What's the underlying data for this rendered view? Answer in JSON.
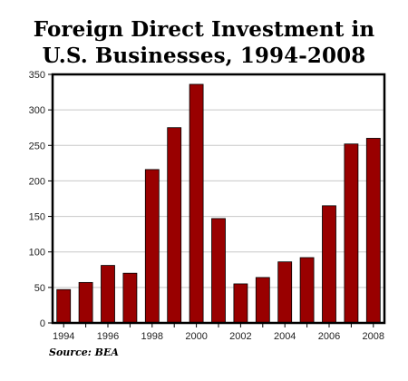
{
  "chart_data": {
    "type": "bar",
    "title_lines": [
      "Foreign Direct Investment in",
      "U.S. Businesses, 1994-2008"
    ],
    "categories": [
      "1994",
      "1995",
      "1996",
      "1997",
      "1998",
      "1999",
      "2000",
      "2001",
      "2002",
      "2003",
      "2004",
      "2005",
      "2006",
      "2007",
      "2008"
    ],
    "values": [
      47,
      57,
      81,
      70,
      216,
      275,
      336,
      147,
      55,
      64,
      86,
      92,
      165,
      252,
      260
    ],
    "ylim": [
      0,
      350
    ],
    "yticks": [
      0,
      50,
      100,
      150,
      200,
      250,
      300,
      350
    ],
    "xtick_labels": [
      "1994",
      "1996",
      "1998",
      "2000",
      "2002",
      "2004",
      "2006",
      "2008"
    ],
    "grid": true,
    "bar_color": "#990000",
    "source": "Source: BEA"
  }
}
